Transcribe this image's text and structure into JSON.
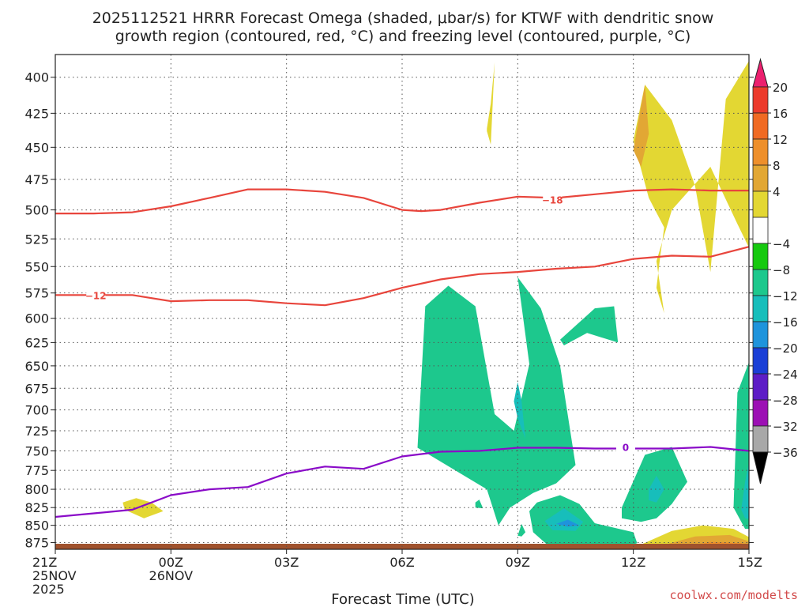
{
  "title_lines": [
    "2025112521 HRRR Forecast Omega (shaded, μbar/s) for KTWF with dendritic snow",
    "growth region (contoured, red, °C) and freezing level (contoured, purple, °C)"
  ],
  "credit": "coolwx.com/modelts",
  "colors": {
    "grid": "#555555",
    "temp_contour": "#e8453c",
    "freezing_contour": "#8a0bc8",
    "ground": "#a0522d"
  },
  "chart_data": {
    "type": "heatmap",
    "title": "2025112521 HRRR Forecast Omega (shaded, μbar/s) for KTWF with dendritic snow growth region (contoured, red, °C) and freezing level (contoured, purple, °C)",
    "xlabel": "Forecast Time (UTC)",
    "ylabel": "",
    "xlim": [
      0,
      18
    ],
    "ylim": [
      885,
      385
    ],
    "y_scale": "log-pressure (inverted)",
    "grid": true,
    "x_ticks": [
      {
        "x": 0,
        "lines": [
          "21Z",
          "25NOV",
          "2025"
        ]
      },
      {
        "x": 3,
        "lines": [
          "00Z",
          "26NOV"
        ]
      },
      {
        "x": 6,
        "lines": [
          "03Z"
        ]
      },
      {
        "x": 9,
        "lines": [
          "06Z"
        ]
      },
      {
        "x": 12,
        "lines": [
          "09Z"
        ]
      },
      {
        "x": 15,
        "lines": [
          "12Z"
        ]
      },
      {
        "x": 18,
        "lines": [
          "15Z"
        ]
      }
    ],
    "y_ticks": [
      400,
      425,
      450,
      475,
      500,
      525,
      550,
      575,
      600,
      625,
      650,
      675,
      700,
      725,
      750,
      775,
      800,
      825,
      850,
      875
    ],
    "colorbar": {
      "labels": [
        20,
        16,
        12,
        8,
        4,
        -4,
        -8,
        -12,
        -16,
        -20,
        -24,
        -28,
        -32,
        -36
      ],
      "bins": [
        {
          "color": "#ec1f6e"
        },
        {
          "color": "#ec3a2c"
        },
        {
          "color": "#f06a23"
        },
        {
          "color": "#ee8f2b"
        },
        {
          "color": "#e2a734"
        },
        {
          "color": "#e3d733"
        },
        {
          "color": "#ffffff"
        },
        {
          "color": "#16c90f"
        },
        {
          "color": "#1dc88d"
        },
        {
          "color": "#17bebb"
        },
        {
          "color": "#1f94dc"
        },
        {
          "color": "#1a3fd6"
        },
        {
          "color": "#5d1dc6"
        },
        {
          "color": "#9c10b4"
        },
        {
          "color": "#a8a8a8"
        },
        {
          "color": "#000000"
        }
      ]
    },
    "contours": [
      {
        "label": "-18",
        "label_x": 12.9,
        "label_y": 492,
        "x": [
          0,
          1,
          2,
          3,
          4,
          5,
          6,
          7,
          8,
          8.5,
          9,
          9.5,
          10,
          11,
          12,
          13,
          14,
          15,
          16,
          17,
          18
        ],
        "y": [
          503,
          503,
          502,
          497,
          490,
          483,
          483,
          485,
          490,
          495,
          500,
          501,
          500,
          494,
          489,
          490,
          487,
          484,
          483,
          484,
          484
        ]
      },
      {
        "label": "-12",
        "label_x": 1.05,
        "label_y": 578,
        "x": [
          0,
          1,
          2,
          3,
          4,
          5,
          6,
          7,
          8,
          9,
          10,
          11,
          12,
          13,
          14,
          15,
          16,
          17,
          18
        ],
        "y": [
          577,
          577,
          577,
          583,
          582,
          582,
          585,
          587,
          580,
          570,
          562,
          557,
          555,
          552,
          550,
          543,
          540,
          541,
          532
        ]
      },
      {
        "label": "0",
        "label_x": 14.8,
        "label_y": 746,
        "x": [
          0,
          1,
          2,
          3,
          4,
          5,
          6,
          7,
          8,
          9,
          10,
          11,
          12,
          13,
          14,
          15,
          16,
          17,
          18
        ],
        "y": [
          838,
          833,
          828,
          808,
          800,
          797,
          779,
          770,
          773,
          757,
          751,
          750,
          746,
          746,
          747,
          747,
          747,
          745,
          750
        ]
      }
    ],
    "omega_regions": [
      {
        "value": 4,
        "x": [
          17.0,
          16.6,
          16.0,
          15.3,
          15.0,
          15.4,
          15.8,
          15.7,
          15.6,
          15.8,
          15.6,
          16.0,
          17.0,
          17.7,
          18.1,
          18.1,
          17.4
        ],
        "y": [
          555,
          480,
          430,
          405,
          445,
          490,
          515,
          540,
          570,
          595,
          545,
          500,
          465,
          512,
          540,
          385,
          415
        ]
      },
      {
        "value": 4,
        "x": [
          1.75,
          2.1,
          2.5,
          2.8,
          2.3,
          1.8
        ],
        "y": [
          818,
          812,
          818,
          830,
          840,
          828
        ]
      },
      {
        "value": 4,
        "x": [
          11.2,
          11.3,
          11.4,
          11.3,
          11.2
        ],
        "y": [
          436,
          418,
          390,
          448,
          438
        ]
      },
      {
        "value": 4,
        "x": [
          15.2,
          16.0,
          16.8,
          17.6,
          18.1,
          18.1,
          15.0
        ],
        "y": [
          878,
          858,
          850,
          855,
          870,
          885,
          885
        ]
      },
      {
        "value": 8,
        "x": [
          15.0,
          15.3,
          15.4,
          15.2,
          15.0
        ],
        "y": [
          452,
          405,
          440,
          465,
          452
        ]
      },
      {
        "value": 8,
        "x": [
          15.7,
          16.6,
          17.5,
          18.1,
          18.1,
          15.7
        ],
        "y": [
          880,
          866,
          864,
          875,
          885,
          885
        ]
      },
      {
        "value": 12,
        "x": [
          16.2,
          17.0,
          17.8,
          18.1,
          18.1,
          16.2
        ],
        "y": [
          883,
          874,
          876,
          880,
          885,
          885
        ]
      },
      {
        "value": 16,
        "x": [
          16.6,
          17.2,
          17.8,
          17.3,
          16.6
        ],
        "y": [
          880,
          877,
          882,
          885,
          885
        ]
      },
      {
        "value": -8,
        "x": [
          9.4,
          9.6,
          10.2,
          10.9,
          11.4,
          11.9,
          12.3,
          12.0,
          12.6,
          13.1,
          13.5,
          13.0,
          12.4,
          11.8,
          11.5,
          11.2
        ],
        "y": [
          746,
          588,
          568,
          588,
          705,
          725,
          648,
          560,
          590,
          650,
          768,
          792,
          805,
          825,
          850,
          800
        ]
      },
      {
        "value": -8,
        "x": [
          12.5,
          13.1,
          13.6,
          14.0,
          15.0,
          15.1,
          14.6,
          12.9,
          12.4,
          12.3
        ],
        "y": [
          818,
          808,
          820,
          847,
          860,
          876,
          885,
          885,
          860,
          830
        ]
      },
      {
        "value": -8,
        "x": [
          13.1,
          14.0,
          14.5,
          14.6,
          13.8,
          13.2
        ],
        "y": [
          622,
          590,
          588,
          625,
          615,
          628
        ]
      },
      {
        "value": -8,
        "x": [
          14.7,
          15.3,
          16.0,
          16.4,
          16.0,
          15.6,
          15.2,
          14.7
        ],
        "y": [
          825,
          755,
          745,
          790,
          820,
          840,
          845,
          840
        ]
      },
      {
        "value": -8,
        "x": [
          18.1,
          17.7,
          17.6,
          17.9,
          18.1
        ],
        "y": [
          635,
          680,
          825,
          855,
          855
        ]
      },
      {
        "value": -8,
        "x": [
          10.9,
          11.0,
          11.1,
          10.9
        ],
        "y": [
          818,
          814,
          826,
          825
        ]
      },
      {
        "value": -8,
        "x": [
          12.0,
          12.1,
          12.2,
          12.1,
          12.0
        ],
        "y": [
          865,
          848,
          860,
          866,
          865
        ]
      },
      {
        "value": -12,
        "x": [
          11.9,
          12.0,
          12.1,
          12.2,
          12.0
        ],
        "y": [
          690,
          668,
          690,
          735,
          710
        ]
      },
      {
        "value": -12,
        "x": [
          12.7,
          13.2,
          13.7,
          13.5,
          12.9
        ],
        "y": [
          844,
          826,
          845,
          858,
          857
        ]
      },
      {
        "value": -12,
        "x": [
          15.4,
          15.6,
          15.8,
          15.6,
          15.4
        ],
        "y": [
          800,
          782,
          800,
          818,
          815
        ]
      },
      {
        "value": -12,
        "x": [
          18.1,
          17.9,
          17.8,
          17.9,
          18.1
        ],
        "y": [
          740,
          790,
          828,
          840,
          842
        ]
      },
      {
        "value": -16,
        "x": [
          13.0,
          13.3,
          13.6,
          13.3
        ],
        "y": [
          848,
          842,
          850,
          852
        ]
      }
    ]
  }
}
